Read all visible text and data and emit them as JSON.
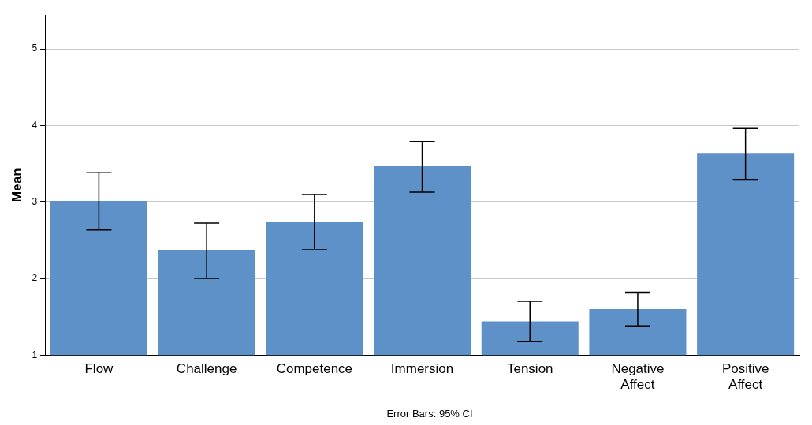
{
  "chart_data": {
    "type": "bar",
    "categories": [
      "Flow",
      "Challenge",
      "Competence",
      "Immersion",
      "Tension",
      "Negative Affect",
      "Positive Affect"
    ],
    "values": [
      3.01,
      2.37,
      2.74,
      3.47,
      1.44,
      1.6,
      3.63
    ],
    "errors": [
      [
        2.64,
        3.39
      ],
      [
        2.0,
        2.73
      ],
      [
        2.38,
        3.1
      ],
      [
        3.13,
        3.79
      ],
      [
        1.18,
        1.7
      ],
      [
        1.38,
        1.82
      ],
      [
        3.29,
        3.96
      ]
    ],
    "color": "#5d91c7",
    "ylabel": "Mean",
    "ylim": [
      1,
      5.44
    ],
    "yticks": [
      1,
      2,
      3,
      4,
      5
    ],
    "grid": "y",
    "annotations": [
      "Error Bars: 95% CI"
    ]
  }
}
